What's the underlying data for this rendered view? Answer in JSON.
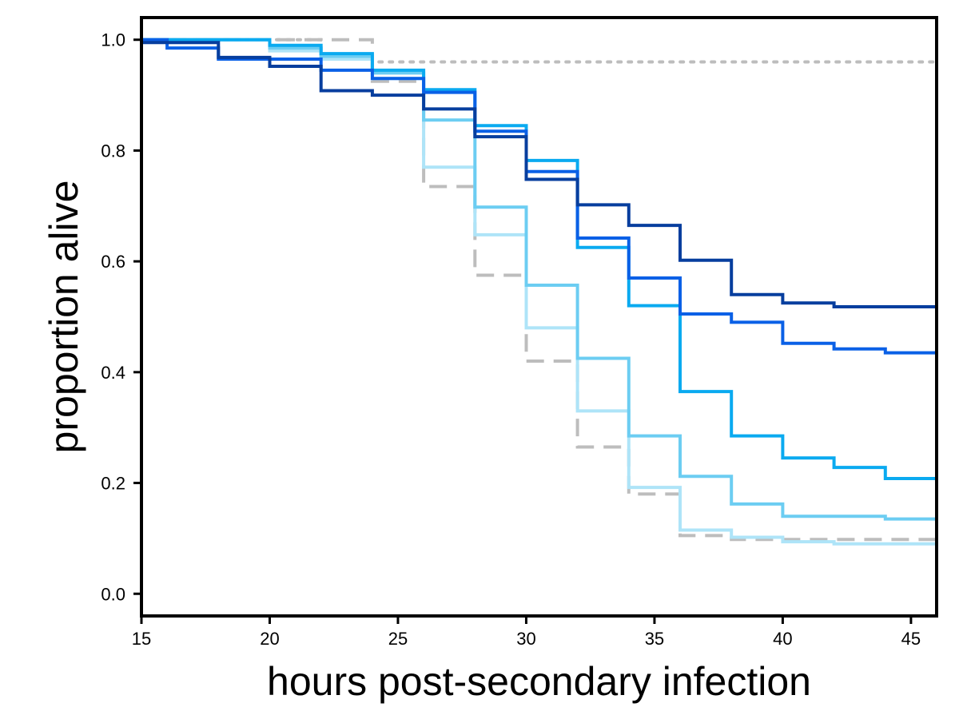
{
  "chart_data": {
    "type": "line",
    "step": true,
    "title": "",
    "xlabel": "hours post-secondary infection",
    "ylabel": "proportion alive",
    "xlim": [
      15,
      46
    ],
    "ylim": [
      -0.04,
      1.04
    ],
    "xticks": [
      15,
      20,
      25,
      30,
      35,
      40,
      45
    ],
    "yticks": [
      0.0,
      0.2,
      0.4,
      0.6,
      0.8,
      1.0
    ],
    "xtick_labels": [
      "15",
      "20",
      "25",
      "30",
      "35",
      "40",
      "45"
    ],
    "ytick_labels": [
      "0.0",
      "0.2",
      "0.4",
      "0.6",
      "0.8",
      "1.0"
    ],
    "grid": false,
    "legend": "none",
    "series": [
      {
        "color": "#bdbdbd",
        "dash": "dotted",
        "x": [
          15,
          22,
          24,
          46
        ],
        "y": [
          1.0,
          0.97,
          0.96,
          0.96
        ]
      },
      {
        "color": "#bdbdbd",
        "dash": "dashed",
        "x": [
          15,
          17,
          24,
          26,
          28,
          30,
          32,
          34,
          36,
          38,
          46
        ],
        "y": [
          1.0,
          1.0,
          0.925,
          0.735,
          0.575,
          0.42,
          0.265,
          0.18,
          0.105,
          0.098,
          0.098
        ]
      },
      {
        "color": "#aee4f8",
        "dash": "solid",
        "x": [
          15,
          20,
          22,
          24,
          26,
          28,
          30,
          32,
          34,
          36,
          38,
          40,
          42,
          46
        ],
        "y": [
          1.0,
          0.98,
          0.965,
          0.93,
          0.77,
          0.648,
          0.48,
          0.33,
          0.192,
          0.115,
          0.102,
          0.094,
          0.09,
          0.09
        ]
      },
      {
        "color": "#6ccdf2",
        "dash": "solid",
        "x": [
          15,
          20,
          22,
          24,
          26,
          28,
          30,
          32,
          34,
          36,
          38,
          40,
          44,
          46
        ],
        "y": [
          1.0,
          0.985,
          0.97,
          0.94,
          0.855,
          0.698,
          0.557,
          0.425,
          0.285,
          0.212,
          0.162,
          0.14,
          0.135,
          0.135
        ]
      },
      {
        "color": "#0aaaf0",
        "dash": "solid",
        "x": [
          15,
          20,
          22,
          24,
          26,
          28,
          30,
          32,
          34,
          36,
          38,
          40,
          42,
          44,
          46
        ],
        "y": [
          1.0,
          0.99,
          0.975,
          0.945,
          0.91,
          0.845,
          0.782,
          0.625,
          0.52,
          0.365,
          0.285,
          0.245,
          0.228,
          0.208,
          0.208
        ]
      },
      {
        "color": "#0a60e6",
        "dash": "solid",
        "x": [
          15,
          16,
          18,
          22,
          24,
          26,
          28,
          30,
          32,
          34,
          36,
          38,
          40,
          42,
          44,
          46
        ],
        "y": [
          1.0,
          0.985,
          0.965,
          0.945,
          0.93,
          0.905,
          0.835,
          0.762,
          0.642,
          0.57,
          0.505,
          0.49,
          0.452,
          0.442,
          0.435,
          0.435
        ]
      },
      {
        "color": "#073e9e",
        "dash": "solid",
        "x": [
          15,
          16,
          18,
          20,
          22,
          24,
          26,
          28,
          30,
          32,
          34,
          36,
          38,
          40,
          42,
          46
        ],
        "y": [
          0.995,
          0.995,
          0.968,
          0.952,
          0.908,
          0.9,
          0.875,
          0.825,
          0.748,
          0.702,
          0.665,
          0.602,
          0.54,
          0.525,
          0.518,
          0.518
        ]
      }
    ]
  }
}
